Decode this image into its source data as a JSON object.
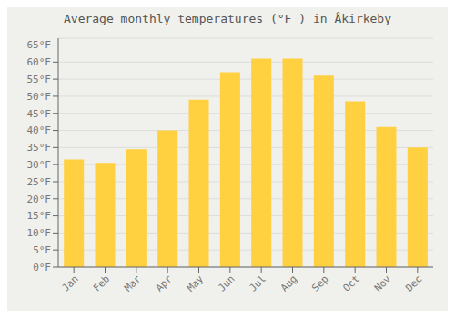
{
  "chart_data": {
    "type": "bar",
    "title": "Average monthly temperatures (°F ) in Åkirkeby",
    "categories": [
      "Jan",
      "Feb",
      "Mar",
      "Apr",
      "May",
      "Jun",
      "Jul",
      "Aug",
      "Sep",
      "Oct",
      "Nov",
      "Dec"
    ],
    "values": [
      31.5,
      30.5,
      34.5,
      40.0,
      49.0,
      57.0,
      61.0,
      61.0,
      56.0,
      48.5,
      41.0,
      35.0
    ],
    "color": "#FFD040",
    "ylim": [
      0,
      67
    ],
    "yticks": [
      {
        "value": 0,
        "label": "0°F"
      },
      {
        "value": 5,
        "label": "5°F"
      },
      {
        "value": 10,
        "label": "10°F"
      },
      {
        "value": 15,
        "label": "15°F"
      },
      {
        "value": 20,
        "label": "20°F"
      },
      {
        "value": 25,
        "label": "25°F"
      },
      {
        "value": 30,
        "label": "30°F"
      },
      {
        "value": 35,
        "label": "35°F"
      },
      {
        "value": 40,
        "label": "40°F"
      },
      {
        "value": 45,
        "label": "45°F"
      },
      {
        "value": 50,
        "label": "50°F"
      },
      {
        "value": 55,
        "label": "55°F"
      },
      {
        "value": 60,
        "label": "60°F"
      },
      {
        "value": 65,
        "label": "65°F"
      }
    ],
    "grid": true
  }
}
